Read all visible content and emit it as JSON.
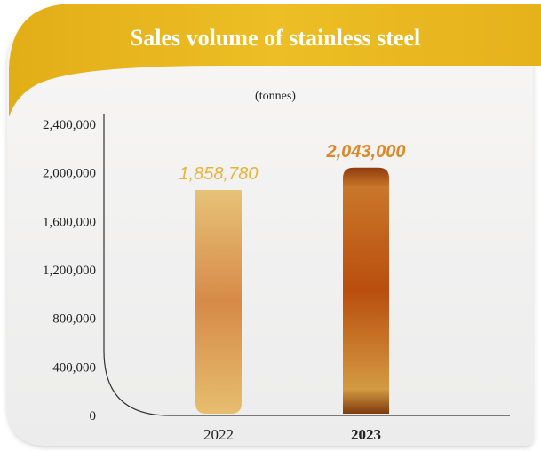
{
  "chart_data": {
    "type": "bar",
    "title": "Sales volume of stainless steel",
    "unit_label": "(tonnes)",
    "categories": [
      "2022",
      "2023"
    ],
    "values": [
      1858780,
      2043000
    ],
    "value_labels": [
      "1,858,780",
      "2,043,000"
    ],
    "ylim": [
      0,
      2400000
    ],
    "yticks": [
      "0",
      "400,000",
      "800,000",
      "1,200,000",
      "1,600,000",
      "2,000,000",
      "2,400,000"
    ],
    "ytick_values": [
      0,
      400000,
      800000,
      1200000,
      1600000,
      2000000,
      2400000
    ],
    "grid": false,
    "colors": {
      "header": "#E6B41C",
      "value_2022": "#E8B33A",
      "value_2023": "#D98A2B",
      "bar_2022": [
        "#E4BC6C",
        "#D7894A",
        "#E7C276"
      ],
      "bar_2023": [
        "#9A4313",
        "#C0560F",
        "#D49A3E"
      ]
    }
  }
}
